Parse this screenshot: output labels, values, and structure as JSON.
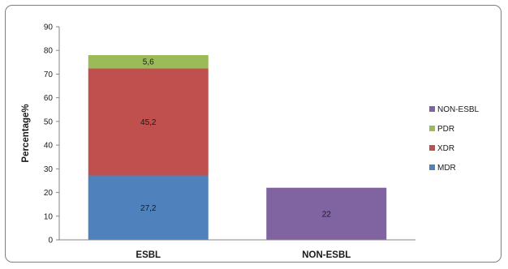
{
  "chart_data": {
    "type": "bar",
    "stacked": true,
    "title": "",
    "xlabel": "",
    "ylabel": "Percentage%",
    "ylim": [
      0,
      90
    ],
    "yticks": [
      0,
      10,
      20,
      30,
      40,
      50,
      60,
      70,
      80,
      90
    ],
    "categories": [
      "ESBL",
      "NON-ESBL"
    ],
    "grid": false,
    "legend_position": "right",
    "series": [
      {
        "name": "MDR",
        "values": [
          27.2,
          0
        ],
        "labels": [
          "27,2",
          ""
        ],
        "color": "#4f81bd"
      },
      {
        "name": "XDR",
        "values": [
          45.2,
          0
        ],
        "labels": [
          "45,2",
          ""
        ],
        "color": "#c0504d"
      },
      {
        "name": "PDR",
        "values": [
          5.6,
          0
        ],
        "labels": [
          "5,6",
          ""
        ],
        "color": "#9bbb59"
      },
      {
        "name": "NON-ESBL",
        "values": [
          0,
          22
        ],
        "labels": [
          "",
          "22"
        ],
        "color": "#8064a2"
      }
    ],
    "legend_order": [
      "NON-ESBL",
      "PDR",
      "XDR",
      "MDR"
    ]
  }
}
